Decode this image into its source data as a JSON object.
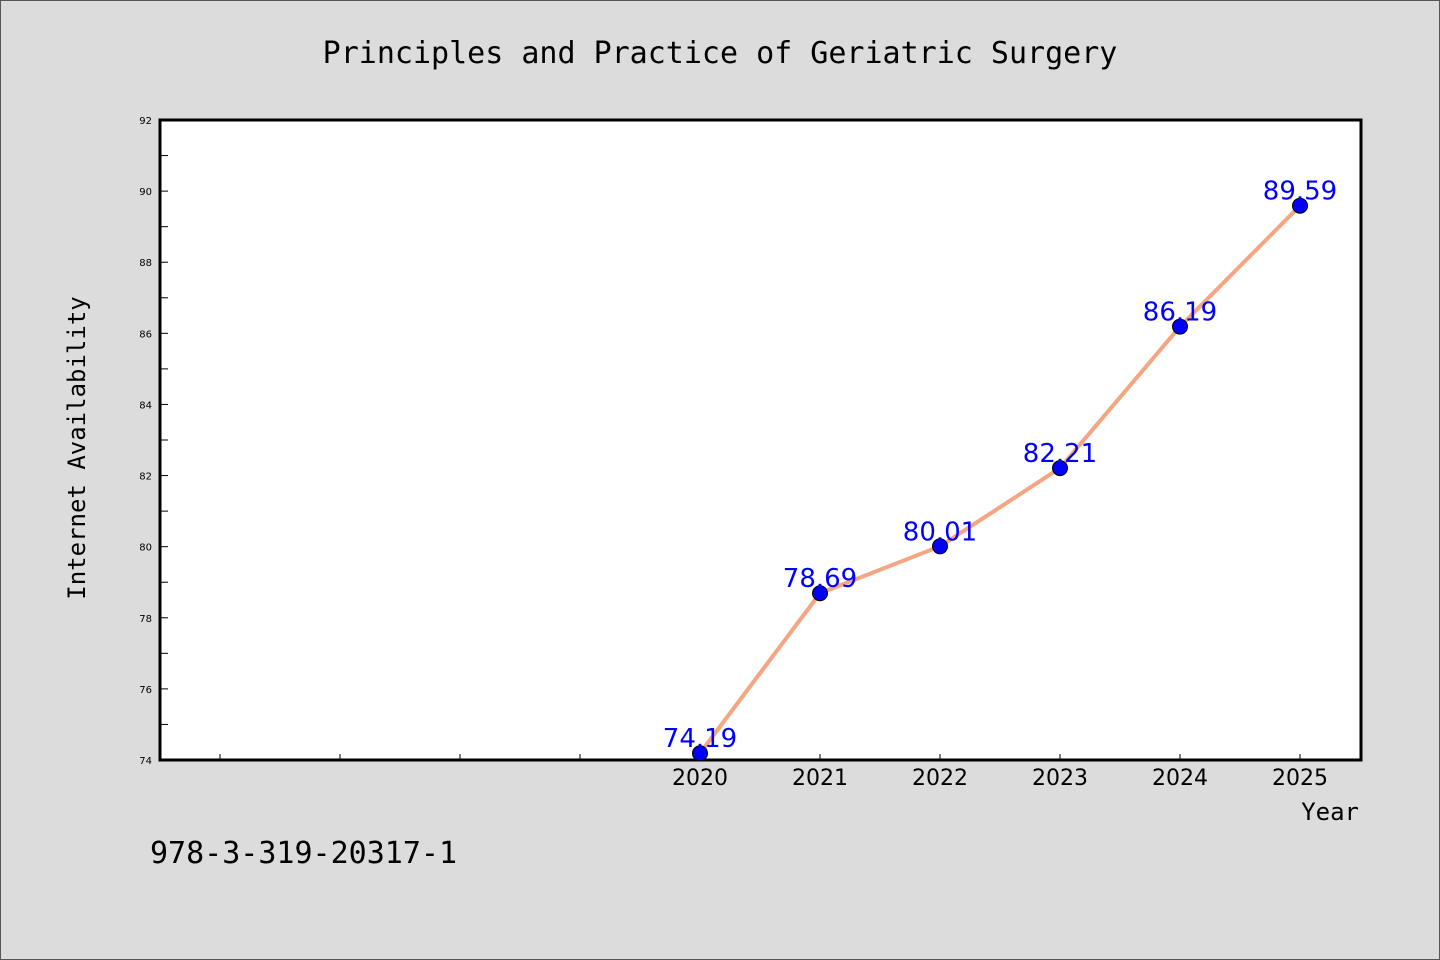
{
  "chart_data": {
    "type": "line",
    "title": "Principles and Practice of Geriatric Surgery",
    "xlabel": "Year",
    "ylabel": "Internet Availability",
    "x": [
      "2020",
      "2021",
      "2022",
      "2023",
      "2024",
      "2025"
    ],
    "values": [
      74.19,
      78.69,
      80.01,
      82.21,
      86.19,
      89.59
    ],
    "data_labels": [
      "74.19",
      "78.69",
      "80.01",
      "82.21",
      "86.19",
      "89.59"
    ],
    "ylim": [
      74,
      92
    ],
    "yticks": [
      74,
      76,
      78,
      80,
      82,
      84,
      86,
      88,
      90,
      92
    ],
    "grid": false,
    "colors": {
      "line": "#f4a582",
      "marker": "#0000ff",
      "label": "#0000ff",
      "plot_bg": "#ffffff",
      "page_bg": "#dcdcdc"
    }
  },
  "footer": {
    "isbn": "978-3-319-20317-1"
  }
}
